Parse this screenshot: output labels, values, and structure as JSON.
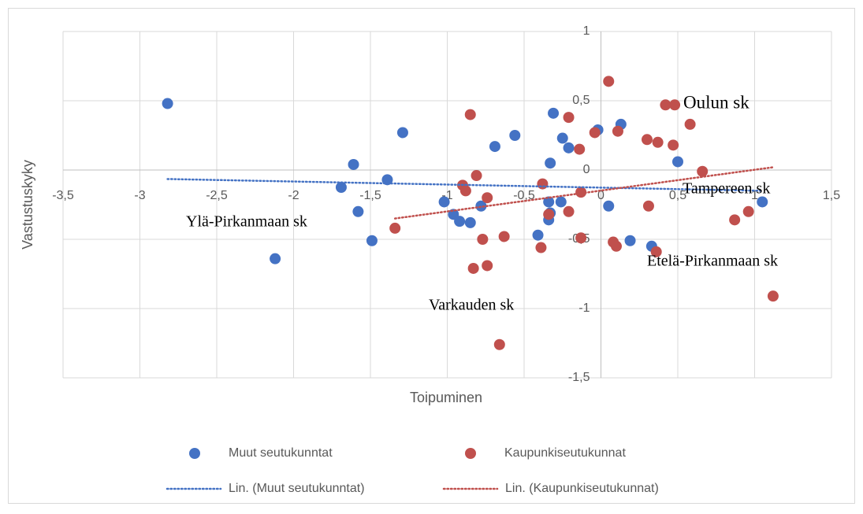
{
  "chart_data": {
    "type": "scatter",
    "x_label": "Toipuminen",
    "y_label": "Vastustuskyky",
    "xlim": [
      -3.5,
      1.5
    ],
    "ylim": [
      -1.5,
      1
    ],
    "xticks": [
      {
        "value": -3.5,
        "label": "-3,5"
      },
      -3,
      {
        "value": -2.5,
        "label": "-2,5"
      },
      -2,
      {
        "value": -1.5,
        "label": "-1,5"
      },
      -1,
      {
        "value": -0.5,
        "label": "-0,5"
      },
      0,
      {
        "value": 0.5,
        "label": "0,5"
      },
      1,
      {
        "value": 1.5,
        "label": "1,5"
      }
    ],
    "yticks": [
      {
        "value": -1.5,
        "label": "-1,5"
      },
      -1,
      {
        "value": -0.5,
        "label": "-0,5"
      },
      0,
      {
        "value": 0.5,
        "label": "0,5"
      },
      1
    ],
    "grid": true,
    "series": [
      {
        "name": "Muut seutukunntat",
        "color": "#4472c4",
        "marker": "circle",
        "x": [
          -2.82,
          -2.12,
          -1.61,
          -1.69,
          -1.58,
          -1.49,
          -1.39,
          -1.29,
          -1.02,
          -0.96,
          -0.92,
          -0.85,
          -0.78,
          -0.69,
          -0.56,
          -0.41,
          -0.34,
          -0.34,
          -0.33,
          -0.33,
          -0.31,
          -0.26,
          -0.25,
          -0.21,
          -0.02,
          0.05,
          0.13,
          0.19,
          0.33,
          0.5,
          1.05
        ],
        "values": [
          0.48,
          -0.64,
          0.04,
          -0.125,
          -0.3,
          -0.51,
          -0.07,
          0.27,
          -0.23,
          -0.32,
          -0.37,
          -0.38,
          -0.26,
          0.17,
          0.25,
          -0.47,
          -0.36,
          -0.23,
          -0.31,
          0.05,
          0.41,
          -0.23,
          0.23,
          0.16,
          0.29,
          -0.26,
          0.33,
          -0.51,
          -0.55,
          0.06,
          -0.23
        ]
      },
      {
        "name": "Kaupunkiseutukunnat",
        "color": "#c0504d",
        "marker": "circle",
        "x": [
          -1.34,
          -0.9,
          -0.88,
          -0.85,
          -0.83,
          -0.81,
          -0.77,
          -0.74,
          -0.74,
          -0.63,
          -0.66,
          -0.39,
          -0.38,
          -0.34,
          -0.21,
          -0.21,
          -0.14,
          -0.13,
          -0.13,
          -0.04,
          0.05,
          0.08,
          0.1,
          0.11,
          0.3,
          0.31,
          0.37,
          0.36,
          0.42,
          0.48,
          0.47,
          0.58,
          0.66,
          0.87,
          0.96,
          1.12
        ],
        "values": [
          -0.42,
          -0.11,
          -0.15,
          0.4,
          -0.71,
          -0.04,
          -0.5,
          -0.69,
          -0.2,
          -0.48,
          -1.26,
          -0.56,
          -0.1,
          -0.32,
          0.38,
          -0.3,
          0.15,
          -0.16,
          -0.49,
          0.27,
          0.64,
          -0.52,
          -0.55,
          0.28,
          0.22,
          -0.26,
          0.2,
          -0.59,
          0.47,
          0.47,
          0.18,
          0.33,
          -0.01,
          -0.36,
          -0.3,
          -0.91
        ]
      },
      {
        "name": "Lin. (Muut seutukunntat)",
        "color": "#4472c4",
        "line": "dotted",
        "x": [
          -2.82,
          1.05
        ],
        "values": [
          -0.065,
          -0.15
        ]
      },
      {
        "name": "Lin. (Kaupunkiseutukunnat)",
        "color": "#c0504d",
        "line": "dotted",
        "x": [
          -1.34,
          1.12
        ],
        "values": [
          -0.35,
          0.02
        ]
      }
    ],
    "annotations": [
      "Oulun sk",
      "Tampereen sk",
      "Ylä-Pirkanmaan sk",
      "Etelä-Pirkanmaan sk",
      "Varkauden sk"
    ]
  }
}
